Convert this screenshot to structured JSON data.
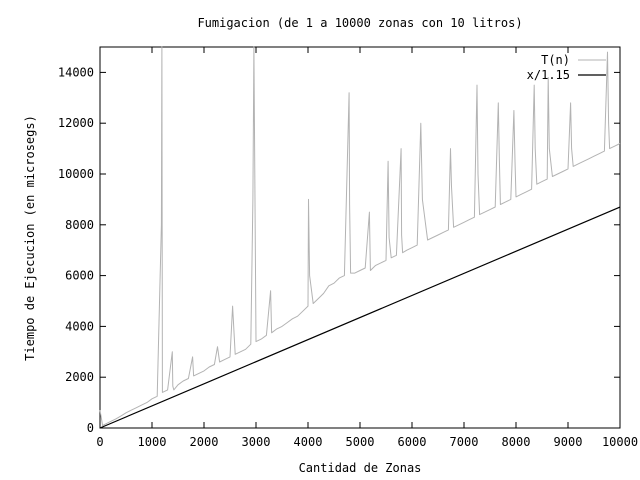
{
  "chart_data": {
    "type": "line",
    "title": "Fumigacion (de 1 a 10000 zonas con 10 litros)",
    "xlabel": "Cantidad de Zonas",
    "ylabel": "Tiempo de Ejecucion (en microsegs)",
    "xlim": [
      0,
      10000
    ],
    "ylim": [
      0,
      15000
    ],
    "xticks": [
      0,
      1000,
      2000,
      3000,
      4000,
      5000,
      6000,
      7000,
      8000,
      9000,
      10000
    ],
    "yticks": [
      0,
      2000,
      4000,
      6000,
      8000,
      10000,
      12000,
      14000
    ],
    "xtick_labels": [
      "0",
      "1000",
      "2000",
      "3000",
      "4000",
      "5000",
      "6000",
      "7000",
      "8000",
      "9000",
      "10000"
    ],
    "ytick_labels": [
      "0",
      "2000",
      "4000",
      "6000",
      "8000",
      "10000",
      "12000",
      "14000"
    ],
    "grid": false,
    "legend_position": "top-right",
    "series": [
      {
        "name": "T(n)",
        "color": "#b3b3b3",
        "x": [
          0,
          50,
          100,
          200,
          300,
          400,
          500,
          600,
          700,
          800,
          900,
          1000,
          1100,
          1180,
          1190,
          1200,
          1300,
          1390,
          1400,
          1420,
          1500,
          1600,
          1700,
          1780,
          1800,
          1900,
          2000,
          2100,
          2200,
          2260,
          2300,
          2400,
          2500,
          2550,
          2600,
          2700,
          2800,
          2900,
          2940,
          2960,
          3000,
          3100,
          3200,
          3280,
          3300,
          3400,
          3500,
          3600,
          3700,
          3800,
          3900,
          4000,
          4010,
          4030,
          4100,
          4200,
          4300,
          4400,
          4500,
          4600,
          4700,
          4790,
          4800,
          4820,
          4900,
          5000,
          5100,
          5180,
          5200,
          5300,
          5400,
          5500,
          5540,
          5560,
          5600,
          5700,
          5790,
          5800,
          5820,
          5900,
          6000,
          6100,
          6170,
          6200,
          6300,
          6400,
          6500,
          6600,
          6700,
          6740,
          6760,
          6800,
          6900,
          7000,
          7100,
          7200,
          7250,
          7270,
          7300,
          7400,
          7500,
          7600,
          7660,
          7680,
          7700,
          7800,
          7900,
          7960,
          7980,
          8000,
          8100,
          8200,
          8300,
          8350,
          8370,
          8400,
          8500,
          8600,
          8620,
          8640,
          8700,
          8800,
          8900,
          9000,
          9050,
          9070,
          9100,
          9200,
          9300,
          9400,
          9500,
          9600,
          9700,
          9760,
          9780,
          9800,
          9900,
          10000
        ],
        "y": [
          700,
          100,
          150,
          250,
          350,
          470,
          600,
          700,
          800,
          900,
          1000,
          1150,
          1250,
          8000,
          15000,
          1400,
          1500,
          3000,
          1650,
          1500,
          1700,
          1850,
          1950,
          2800,
          2050,
          2150,
          2250,
          2400,
          2500,
          3200,
          2600,
          2700,
          2800,
          4800,
          2900,
          3000,
          3100,
          3300,
          9000,
          15000,
          3400,
          3500,
          3650,
          5400,
          3750,
          3900,
          4000,
          4150,
          4300,
          4400,
          4600,
          4800,
          9000,
          6000,
          4900,
          5100,
          5300,
          5600,
          5700,
          5900,
          6000,
          13200,
          8800,
          6100,
          6100,
          6200,
          6300,
          8500,
          6200,
          6400,
          6500,
          6600,
          10500,
          7500,
          6700,
          6800,
          11000,
          7600,
          6900,
          7000,
          7100,
          7200,
          12000,
          9000,
          7400,
          7500,
          7600,
          7700,
          7800,
          11000,
          9500,
          7900,
          8000,
          8100,
          8200,
          8300,
          13500,
          10000,
          8400,
          8500,
          8600,
          8700,
          12800,
          10500,
          8800,
          8900,
          9000,
          12500,
          10500,
          9100,
          9200,
          9300,
          9400,
          13500,
          11000,
          9600,
          9700,
          9800,
          13800,
          11000,
          9900,
          10000,
          10100,
          10200,
          12800,
          11000,
          10300,
          10400,
          10500,
          10600,
          10700,
          10800,
          10900,
          14800,
          12000,
          11000,
          11100,
          11200
        ]
      },
      {
        "name": "x/1.15",
        "color": "#000000",
        "x": [
          0,
          10000
        ],
        "y": [
          0,
          8696
        ]
      }
    ]
  }
}
